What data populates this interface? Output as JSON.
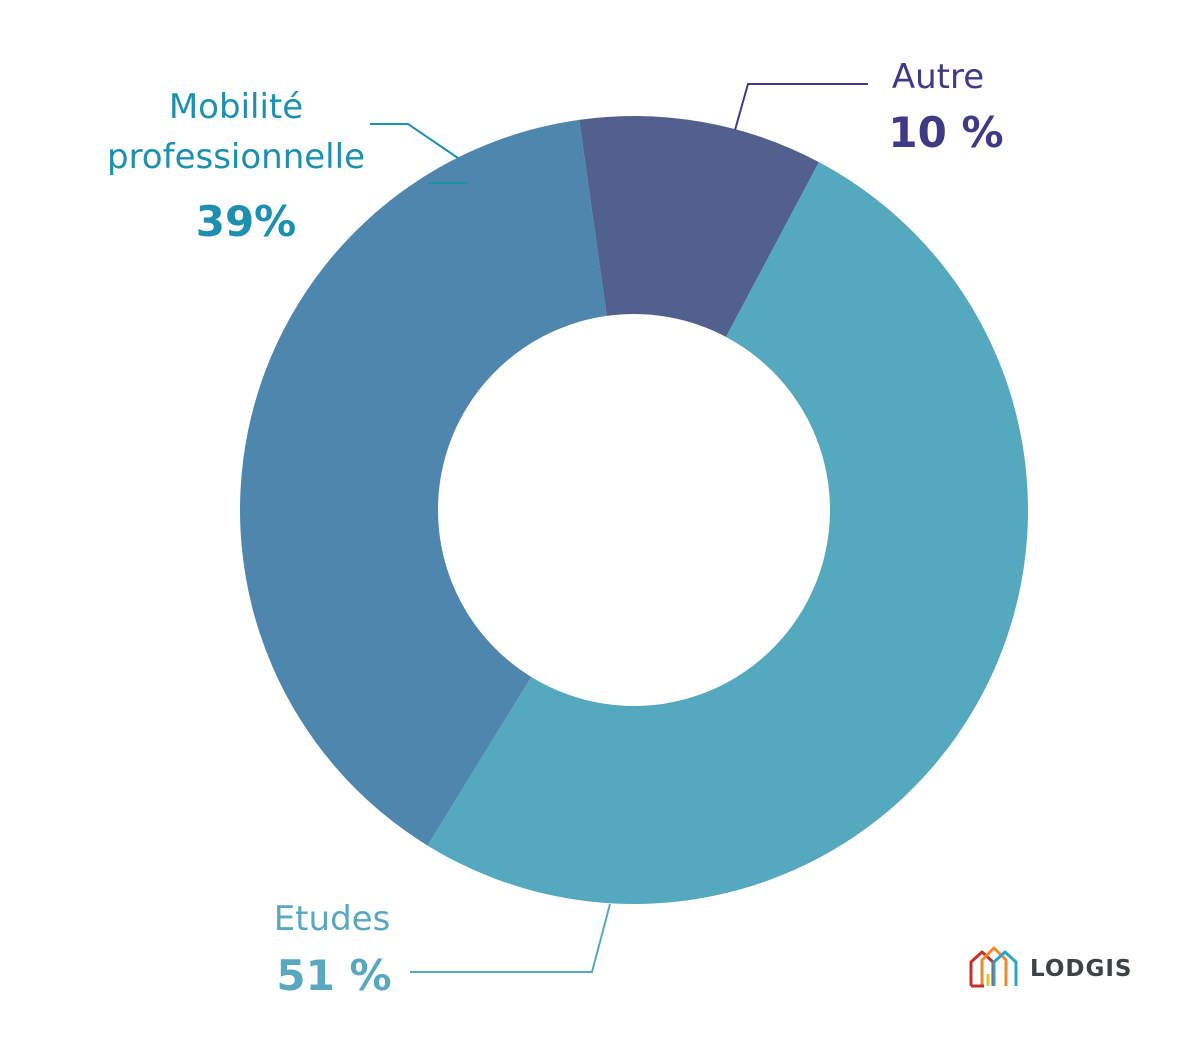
{
  "chart_data": {
    "type": "pie",
    "donut": true,
    "slices": [
      {
        "label": "Autre",
        "value_label": "10 %",
        "value": 10,
        "color": "#52608e",
        "label_color": "#3f3a86"
      },
      {
        "label": "Etudes",
        "value_label": "51 %",
        "value": 51,
        "color": "#55a9bf",
        "label_color": "#5aa8c0"
      },
      {
        "label": "Mobilité professionnelle",
        "label_lines": [
          "Mobilité",
          "professionnelle"
        ],
        "value_label": "39%",
        "value": 39,
        "color": "#4e86ad",
        "label_color": "#1d8fb0"
      }
    ]
  },
  "logo": {
    "text": "LODGIS",
    "colors": [
      "#c8302e",
      "#e8c32c",
      "#2aa7c8",
      "#f08a2a",
      "#3d4148"
    ]
  }
}
